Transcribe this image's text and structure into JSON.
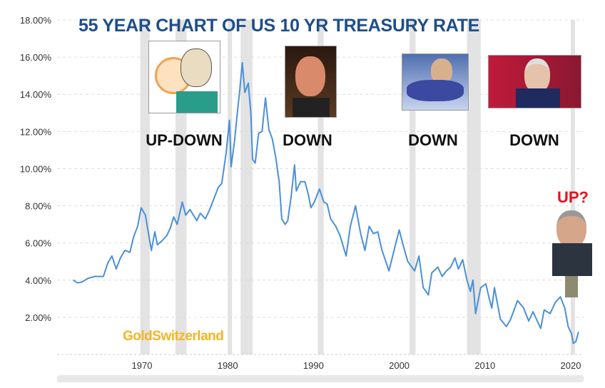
{
  "title": "55 YEAR CHART OF US 10 YR TREASURY RATE",
  "watermark": "GoldSwitzerland",
  "annotations": [
    {
      "label": "UP-DOWN",
      "person_icon": "volcker-caricature-icon"
    },
    {
      "label": "DOWN",
      "person_icon": "greenspan-caricature-icon"
    },
    {
      "label": "DOWN",
      "person_icon": "bernanke-caricature-icon"
    },
    {
      "label": "DOWN",
      "person_icon": "yellen-caricature-icon"
    },
    {
      "label": "UP?",
      "person_icon": "powell-caricature-icon"
    }
  ],
  "colors": {
    "line": "#4a90d9",
    "title": "#1d4e89",
    "watermark": "#f5b51b",
    "up": "#e0141c",
    "recession": "#e3e3e3"
  },
  "chart_data": {
    "type": "line",
    "title": "55 YEAR CHART OF US 10 YR TREASURY RATE",
    "xlabel": "",
    "ylabel": "",
    "xlim": [
      1960.1,
      2021.5
    ],
    "ylim": [
      0,
      18
    ],
    "x_ticks": [
      "1970",
      "1980",
      "1990",
      "2000",
      "2010",
      "2020"
    ],
    "x_tick_values": [
      1970,
      1980,
      1990,
      2000,
      2010,
      2020
    ],
    "y_ticks": [
      "2.00%",
      "4.00%",
      "6.00%",
      "8.00%",
      "10.00%",
      "12.00%",
      "14.00%",
      "16.00%",
      "18.00%"
    ],
    "y_tick_values": [
      2,
      4,
      6,
      8,
      10,
      12,
      14,
      16,
      18
    ],
    "grid": true,
    "recessions": [
      [
        1969.8,
        1970.9
      ],
      [
        1973.9,
        1975.2
      ],
      [
        1980.0,
        1980.5
      ],
      [
        1981.5,
        1982.9
      ],
      [
        1990.5,
        1991.2
      ],
      [
        2001.2,
        2001.9
      ],
      [
        2007.9,
        2009.5
      ],
      [
        2020.0,
        2020.5
      ]
    ],
    "series": [
      {
        "name": "US 10 Year Treasury Rate (%)",
        "points": [
          [
            1962,
            4.0
          ],
          [
            1962.5,
            3.85
          ],
          [
            1963,
            3.9
          ],
          [
            1963.7,
            4.1
          ],
          [
            1964.5,
            4.2
          ],
          [
            1965.5,
            4.2
          ],
          [
            1966,
            4.9
          ],
          [
            1966.5,
            5.3
          ],
          [
            1967,
            4.6
          ],
          [
            1967.5,
            5.2
          ],
          [
            1968,
            5.6
          ],
          [
            1968.6,
            5.5
          ],
          [
            1969,
            6.3
          ],
          [
            1969.5,
            6.9
          ],
          [
            1969.9,
            7.9
          ],
          [
            1970.4,
            7.5
          ],
          [
            1970.8,
            6.4
          ],
          [
            1971.1,
            5.6
          ],
          [
            1971.5,
            6.6
          ],
          [
            1971.8,
            5.9
          ],
          [
            1972.3,
            6.1
          ],
          [
            1972.9,
            6.4
          ],
          [
            1973.3,
            6.8
          ],
          [
            1973.7,
            7.4
          ],
          [
            1974.1,
            7.0
          ],
          [
            1974.4,
            7.6
          ],
          [
            1974.7,
            8.2
          ],
          [
            1975.1,
            7.5
          ],
          [
            1975.6,
            7.8
          ],
          [
            1976.0,
            7.5
          ],
          [
            1976.4,
            7.2
          ],
          [
            1976.8,
            7.6
          ],
          [
            1977.4,
            7.3
          ],
          [
            1977.9,
            7.8
          ],
          [
            1978.4,
            8.4
          ],
          [
            1978.9,
            9.0
          ],
          [
            1979.3,
            9.2
          ],
          [
            1979.8,
            10.8
          ],
          [
            1980.2,
            12.6
          ],
          [
            1980.4,
            10.1
          ],
          [
            1980.8,
            11.5
          ],
          [
            1981.1,
            12.9
          ],
          [
            1981.4,
            14.2
          ],
          [
            1981.7,
            15.7
          ],
          [
            1982.0,
            14.1
          ],
          [
            1982.4,
            14.6
          ],
          [
            1982.7,
            13.0
          ],
          [
            1982.9,
            10.5
          ],
          [
            1983.2,
            10.3
          ],
          [
            1983.6,
            11.9
          ],
          [
            1984.0,
            12.0
          ],
          [
            1984.4,
            13.8
          ],
          [
            1984.8,
            12.1
          ],
          [
            1985.2,
            11.6
          ],
          [
            1985.6,
            10.6
          ],
          [
            1986.0,
            9.3
          ],
          [
            1986.3,
            7.3
          ],
          [
            1986.7,
            7.0
          ],
          [
            1987.0,
            7.2
          ],
          [
            1987.4,
            8.5
          ],
          [
            1987.8,
            10.2
          ],
          [
            1988.0,
            8.8
          ],
          [
            1988.5,
            9.3
          ],
          [
            1989.0,
            9.3
          ],
          [
            1989.4,
            8.6
          ],
          [
            1989.7,
            7.9
          ],
          [
            1990.1,
            8.2
          ],
          [
            1990.7,
            8.9
          ],
          [
            1991.2,
            8.2
          ],
          [
            1991.6,
            8.1
          ],
          [
            1992.0,
            7.3
          ],
          [
            1992.6,
            6.9
          ],
          [
            1993.1,
            6.4
          ],
          [
            1993.8,
            5.3
          ],
          [
            1994.3,
            6.9
          ],
          [
            1994.9,
            8.0
          ],
          [
            1995.5,
            6.5
          ],
          [
            1996.0,
            5.6
          ],
          [
            1996.5,
            6.9
          ],
          [
            1997.0,
            6.5
          ],
          [
            1997.5,
            6.6
          ],
          [
            1998.0,
            5.6
          ],
          [
            1998.8,
            4.5
          ],
          [
            1999.5,
            5.8
          ],
          [
            2000.0,
            6.7
          ],
          [
            2000.5,
            5.8
          ],
          [
            2001.0,
            5.0
          ],
          [
            2001.8,
            4.5
          ],
          [
            2002.3,
            5.3
          ],
          [
            2002.8,
            3.6
          ],
          [
            2003.4,
            3.2
          ],
          [
            2003.8,
            4.4
          ],
          [
            2004.5,
            4.7
          ],
          [
            2005.0,
            4.2
          ],
          [
            2005.5,
            4.5
          ],
          [
            2006.0,
            4.7
          ],
          [
            2006.5,
            5.2
          ],
          [
            2006.9,
            4.6
          ],
          [
            2007.4,
            5.1
          ],
          [
            2007.9,
            4.0
          ],
          [
            2008.3,
            3.4
          ],
          [
            2008.6,
            4.0
          ],
          [
            2008.9,
            2.2
          ],
          [
            2009.5,
            3.6
          ],
          [
            2010.1,
            3.8
          ],
          [
            2010.5,
            3.0
          ],
          [
            2010.8,
            2.5
          ],
          [
            2011.1,
            3.6
          ],
          [
            2011.8,
            1.9
          ],
          [
            2012.5,
            1.5
          ],
          [
            2013.0,
            1.9
          ],
          [
            2013.8,
            2.9
          ],
          [
            2014.5,
            2.5
          ],
          [
            2015.1,
            1.8
          ],
          [
            2015.6,
            2.3
          ],
          [
            2016.5,
            1.4
          ],
          [
            2016.9,
            2.4
          ],
          [
            2017.6,
            2.2
          ],
          [
            2018.2,
            2.8
          ],
          [
            2018.8,
            3.1
          ],
          [
            2019.3,
            2.5
          ],
          [
            2019.7,
            1.5
          ],
          [
            2020.1,
            1.1
          ],
          [
            2020.3,
            0.6
          ],
          [
            2020.6,
            0.7
          ],
          [
            2020.9,
            1.2
          ]
        ]
      }
    ]
  }
}
